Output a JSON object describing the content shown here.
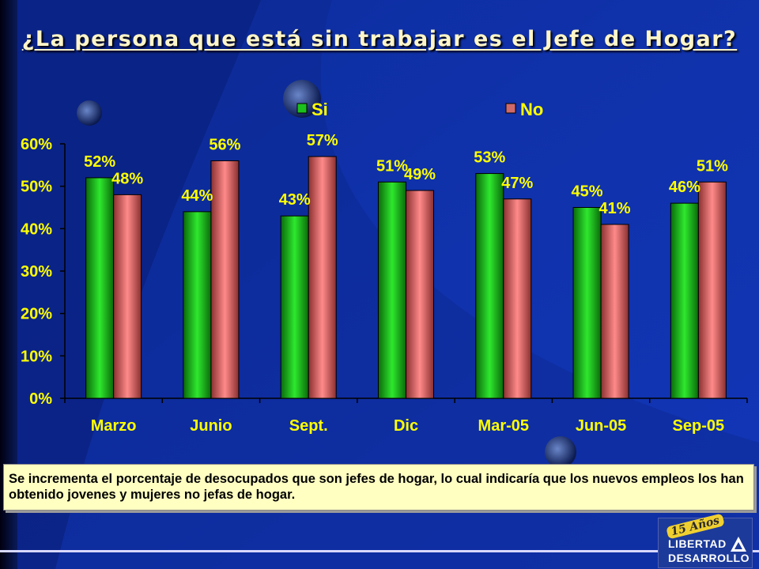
{
  "title": "¿La persona que está sin trabajar es el Jefe de Hogar?",
  "colors": {
    "si": "#1cc01c",
    "no": "#d06a6a",
    "label": "#ffff00",
    "background": "#0a2a9a"
  },
  "chart_data": {
    "type": "bar",
    "categories": [
      "Marzo",
      "Junio",
      "Sept.",
      "Dic",
      "Mar-05",
      "Jun-05",
      "Sep-05"
    ],
    "series": [
      {
        "name": "Si",
        "values": [
          52,
          44,
          43,
          51,
          53,
          45,
          46
        ],
        "labels": [
          "52%",
          "44%",
          "43%",
          "51%",
          "53%",
          "45%",
          "46%"
        ]
      },
      {
        "name": "No",
        "values": [
          48,
          56,
          57,
          49,
          47,
          41,
          51
        ],
        "labels": [
          "48%",
          "56%",
          "57%",
          "49%",
          "47%",
          "41%",
          "51%"
        ]
      }
    ],
    "yticks": [
      "0%",
      "10%",
      "20%",
      "30%",
      "40%",
      "50%",
      "60%"
    ],
    "ylim": [
      0,
      60
    ],
    "legend": "top",
    "grid": false
  },
  "note": "Se incrementa el porcentaje de desocupados que son jefes de hogar, lo cual indicaría que los nuevos empleos los han obtenido jovenes y mujeres no jefas de hogar.",
  "logo": {
    "badge": "15 Años",
    "line1": "LIBERTAD",
    "line2": "DESARROLLO"
  }
}
